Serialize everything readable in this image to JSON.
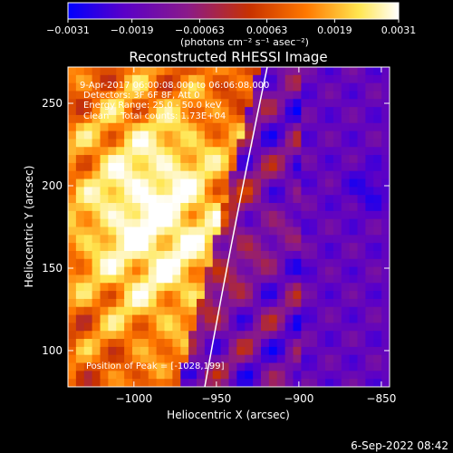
{
  "chart_data": {
    "type": "heatmap",
    "title": "Reconstructed RHESSI Image",
    "xlabel": "Heliocentric X (arcsec)",
    "ylabel": "Heliocentric Y (arcsec)",
    "xlim": [
      -1040,
      -845
    ],
    "ylim": [
      78,
      272
    ],
    "x_ticks": [
      -1000,
      -950,
      -900,
      -850
    ],
    "x_tick_labels": [
      "−1000",
      "−950",
      "−900",
      "−850"
    ],
    "y_ticks": [
      100,
      150,
      200,
      250
    ],
    "y_tick_labels": [
      "100",
      "150",
      "200",
      "250"
    ],
    "colorbar": {
      "range": [
        -0.0031,
        0.0031
      ],
      "ticks": [
        -0.0031,
        -0.0019,
        -0.00063,
        0.00063,
        0.0019,
        0.0031
      ],
      "tick_labels": [
        "−0.0031",
        "−0.0019",
        "−0.00063",
        "0.00063",
        "0.0019",
        "0.0031"
      ],
      "units_text": "(photons cm⁻² s⁻¹ asec⁻²)",
      "colors": [
        "#0000ff",
        "#5a00c8",
        "#8a1a8a",
        "#c83200",
        "#ff7800",
        "#ffe650",
        "#ffffff"
      ]
    },
    "annotations": [
      "9-Apr-2017 06:00:08.000 to 06:06:08.000",
      "Detectors: 3F 6F 8F, Att 0",
      "Energy Range: 25.0 - 50.0 keV",
      "Clean    Total counts: 1.73E+04"
    ],
    "peak_text": "Position of Peak = [-1028,199]",
    "limb_color": "#ffffff",
    "grid": false
  },
  "footer": {
    "timestamp": "6-Sep-2022 08:42"
  }
}
